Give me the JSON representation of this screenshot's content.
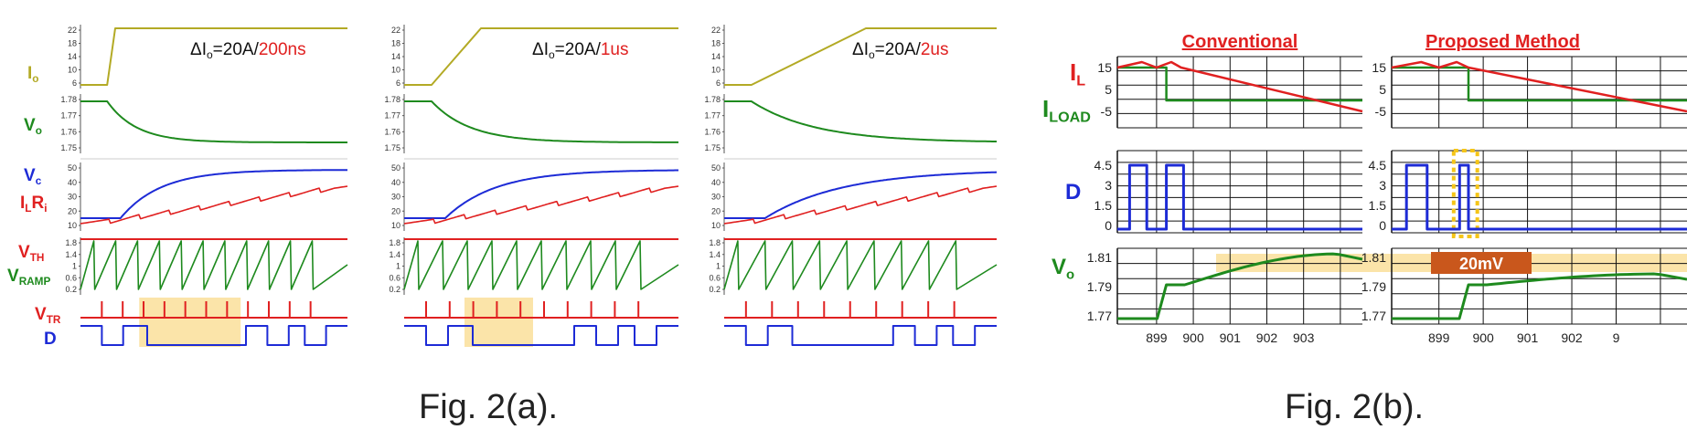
{
  "captions": {
    "a": "Fig. 2(a).",
    "b": "Fig. 2(b)."
  },
  "colors": {
    "olive": "#b3aa25",
    "green": "#1e8a1e",
    "blue": "#1d2bd6",
    "red": "#e02020",
    "highlight": "#fbe4a9",
    "badge": "#c9571c",
    "dotted": "#f5c518"
  },
  "chart_data": [
    {
      "type": "line",
      "panel": "a",
      "columns": [
        {
          "annotation_prefix": "ΔI",
          "annotation_sub": "o",
          "annotation_mid": "=20A/",
          "annotation_rate": "200ns",
          "transition": 0.1,
          "ramp_count": 11
        },
        {
          "annotation_prefix": "ΔI",
          "annotation_sub": "o",
          "annotation_mid": "=20A/",
          "annotation_rate": "1us",
          "transition": 0.3,
          "ramp_count": 10
        },
        {
          "annotation_prefix": "ΔI",
          "annotation_sub": "o",
          "annotation_mid": "=20A/",
          "annotation_rate": "2us",
          "transition": 0.55,
          "ramp_count": 9
        }
      ],
      "rows": [
        {
          "label_main": "I",
          "label_sub": "o",
          "label_color": "olive",
          "ticks": [
            "22",
            "18",
            "14",
            "10",
            "6"
          ],
          "ylim": [
            6,
            24
          ],
          "series": [
            {
              "color": "olive",
              "low": 6,
              "high": 24
            }
          ]
        },
        {
          "label_main": "V",
          "label_sub": "o",
          "label_color": "green",
          "ticks": [
            "1.78",
            "1.77",
            "1.76",
            "1.75"
          ],
          "ylim": [
            1.75,
            1.785
          ],
          "series": [
            {
              "color": "green",
              "from": 1.779,
              "to": 1.753
            }
          ]
        },
        {
          "labels": [
            {
              "main": "V",
              "sub": "c",
              "color": "blue"
            },
            {
              "main": "I",
              "sub": "L",
              "main2": "R",
              "sub2": "i",
              "color": "red"
            }
          ],
          "ticks": [
            "50",
            "40",
            "30",
            "20",
            "10"
          ],
          "ylim": [
            5,
            50
          ],
          "series": [
            {
              "color": "blue",
              "name_main": "V",
              "name_sub": "c"
            },
            {
              "color": "red",
              "name_main": "I",
              "name_sub": "L"
            }
          ]
        },
        {
          "labels": [
            {
              "main": "V",
              "sub": "TH",
              "color": "red"
            },
            {
              "main": "V",
              "sub": "RAMP",
              "color": "green"
            }
          ],
          "ticks": [
            "1.8",
            "1.4",
            "1",
            "0.6",
            "0.2"
          ],
          "ylim": [
            0,
            1.9
          ]
        },
        {
          "labels": [
            {
              "main": "V",
              "sub": "TR",
              "color": "red"
            }
          ]
        },
        {
          "labels": [
            {
              "main": "D",
              "sub": "",
              "color": "blue"
            }
          ]
        }
      ]
    },
    {
      "type": "line",
      "panel": "b",
      "titles": [
        "Conventional",
        "Proposed Method"
      ],
      "legend": [
        {
          "main": "I",
          "sub": "L",
          "color": "red"
        },
        {
          "main": "I",
          "sub": "LOAD",
          "color": "green"
        }
      ],
      "rows": [
        {
          "name": "current",
          "ticks": [
            "15",
            "5",
            "-5"
          ],
          "ylim": [
            -8,
            20
          ],
          "series": [
            {
              "name_main": "I",
              "name_sub": "L",
              "color": "red",
              "x": [
                898.5,
                899,
                899.3,
                899.6,
                899.9,
                903.7
              ],
              "y": [
                16,
                15,
                17,
                15,
                17,
                0
              ]
            },
            {
              "name_main": "I",
              "name_sub": "LOAD",
              "color": "green",
              "x": [
                898.5,
                899.7,
                899.7,
                903.7
              ],
              "y": [
                16,
                16,
                5,
                5
              ]
            }
          ]
        },
        {
          "name": "D",
          "label_main": "D",
          "label_color": "blue",
          "ticks": [
            "4.5",
            "3",
            "1.5",
            "0"
          ],
          "ylim": [
            0,
            5
          ]
        },
        {
          "name": "Vo",
          "label_main": "V",
          "label_sub": "o",
          "label_color": "green",
          "ticks": [
            "1.81",
            "1.79",
            "1.77"
          ],
          "ylim": [
            1.765,
            1.815
          ]
        }
      ],
      "x_ticks": [
        "899",
        "900",
        "901",
        "902",
        "903"
      ],
      "x_ticks_right": [
        "899",
        "900",
        "901",
        "902",
        "9"
      ],
      "highlight_label": "20mV"
    }
  ]
}
